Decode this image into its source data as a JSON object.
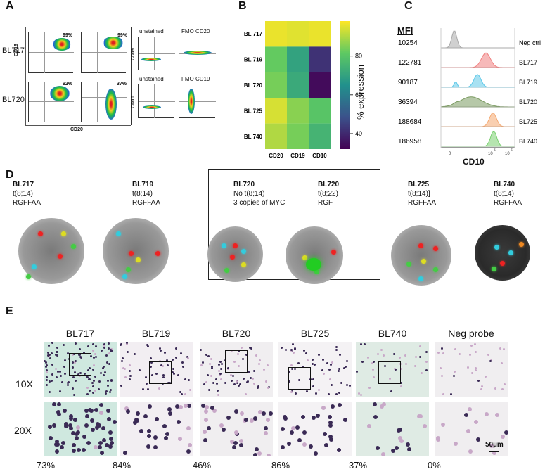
{
  "panelA": {
    "letter": "A",
    "rowLabels": [
      "BL717",
      "BL720"
    ],
    "yAxisTop": [
      "CD19",
      "CD10"
    ],
    "yAxisBottom": [
      "CD10"
    ],
    "xAxis": "CD20",
    "pctTopLeft": "99%",
    "pctTopMid": "99%",
    "pctBottomLeft": "92%",
    "pctBottomMid": "37%",
    "controlTop": [
      "unstained",
      "FMO CD20"
    ],
    "controlBottom": [
      "unstained",
      "FMO CD19"
    ],
    "ctrlAxisTop": "CD19",
    "ctrlAxisBottom": "CD10"
  },
  "panelB": {
    "letter": "B",
    "colorbarLabel": "% expression",
    "colorbarTicks": [
      "80",
      "60",
      "40"
    ]
  },
  "chart_data": {
    "type": "heatmap",
    "rows": [
      "BL 717",
      "BL 719",
      "BL 720",
      "BL 725",
      "BL 740"
    ],
    "columns": [
      "CD20",
      "CD19",
      "CD10"
    ],
    "values": [
      [
        96,
        95,
        96
      ],
      [
        82,
        70,
        42
      ],
      [
        84,
        72,
        34
      ],
      [
        94,
        86,
        80
      ],
      [
        90,
        84,
        75
      ]
    ],
    "colorbar_label": "% expression",
    "colorbar_range": [
      32,
      98
    ],
    "colorbar_ticks": [
      40,
      60,
      80
    ],
    "colormap": "viridis"
  },
  "panelC": {
    "letter": "C",
    "mfiHeader": "MFI",
    "mfi": [
      "10254",
      "122781",
      "90187",
      "36394",
      "188684",
      "186958"
    ],
    "samples": [
      "Neg ctrl",
      "BL717",
      "BL719",
      "BL720",
      "BL725",
      "BL740"
    ],
    "colors": [
      "#aaaaaa",
      "#f08080",
      "#5ec8e8",
      "#7a9a60",
      "#f4a870",
      "#7ad070"
    ],
    "xAxis": "CD10",
    "ticks": [
      "0",
      "10",
      "5",
      "10",
      "6"
    ]
  },
  "panelD": {
    "letter": "D",
    "cases": [
      {
        "name": "BL717",
        "line1": "t(8;14)",
        "line2": "RGFFAA",
        "line3": ""
      },
      {
        "name": "BL719",
        "line1": "t(8;14)",
        "line2": "RGFFAA",
        "line3": ""
      },
      {
        "name": "BL720",
        "line1": "No t(8;14)",
        "line2": "3 copies of  MYC",
        "line3": ""
      },
      {
        "name": "BL720",
        "line1": "t(8;22)",
        "line2": "RGF",
        "line3": ""
      },
      {
        "name": "BL725",
        "line1": "t(8;14)]",
        "line2": "RGFFAA",
        "line3": ""
      },
      {
        "name": "BL740",
        "line1": "t(8;14)",
        "line2": "RGFFAA",
        "line3": ""
      }
    ]
  },
  "panelE": {
    "letter": "E",
    "columns": [
      "BL717",
      "BL719",
      "BL720",
      "BL725",
      "BL740",
      "Neg probe"
    ],
    "rows": [
      "10X",
      "20X"
    ],
    "percents": [
      "73%",
      "84%",
      "46%",
      "86%",
      "37%",
      "0%"
    ],
    "scaleBar": "50µm"
  }
}
